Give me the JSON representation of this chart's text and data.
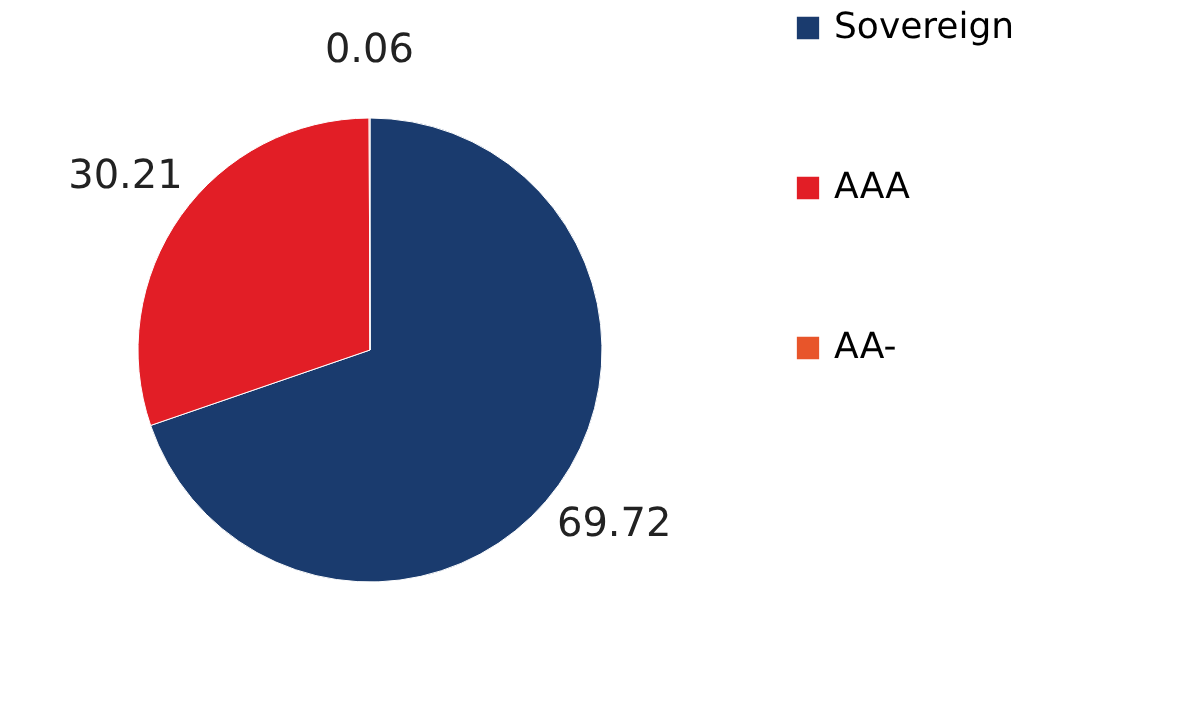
{
  "chart_data": {
    "type": "pie",
    "categories": [
      "Sovereign",
      "AAA",
      "AA-"
    ],
    "values": [
      69.72,
      30.21,
      0.06
    ],
    "colors": [
      "#1a3b6e",
      "#e21e26",
      "#e8552a"
    ],
    "data_labels": true,
    "legend": "right"
  }
}
